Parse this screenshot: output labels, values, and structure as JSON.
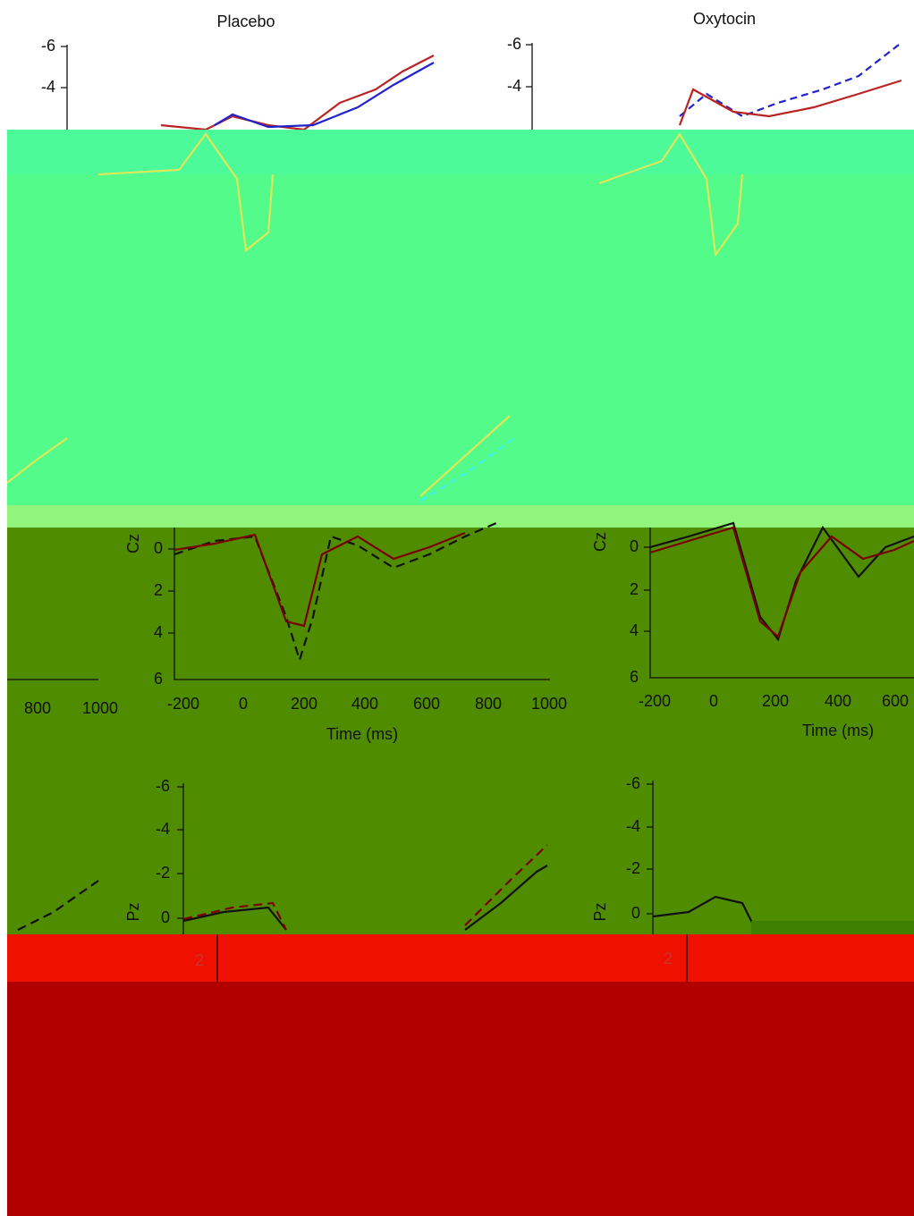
{
  "top": {
    "placebo": {
      "title": "Placebo",
      "yticks": [
        "-6",
        "-4"
      ]
    },
    "oxytocin": {
      "title": "Oxytocin",
      "yticks": [
        "-6",
        "-4"
      ]
    }
  },
  "cz": {
    "left_partial": {
      "xticks": [
        "800",
        "1000"
      ]
    },
    "placebo": {
      "ylabel": "Cz",
      "yticks": [
        "0",
        "2",
        "4",
        "6"
      ],
      "xticks": [
        "-200",
        "0",
        "200",
        "400",
        "600",
        "800",
        "1000"
      ],
      "xlabel": "Time (ms)"
    },
    "oxytocin": {
      "ylabel": "Cz",
      "yticks": [
        "0",
        "2",
        "4",
        "6"
      ],
      "xticks": [
        "-200",
        "0",
        "200",
        "400",
        "600"
      ],
      "xlabel": "Time (ms)"
    }
  },
  "pz": {
    "placebo": {
      "ylabel": "Pz",
      "yticks": [
        "-6",
        "-4",
        "-2",
        "0",
        "2"
      ]
    },
    "oxytocin": {
      "ylabel": "Pz",
      "yticks": [
        "-6",
        "-4",
        "-2",
        "0",
        "2"
      ]
    }
  }
}
